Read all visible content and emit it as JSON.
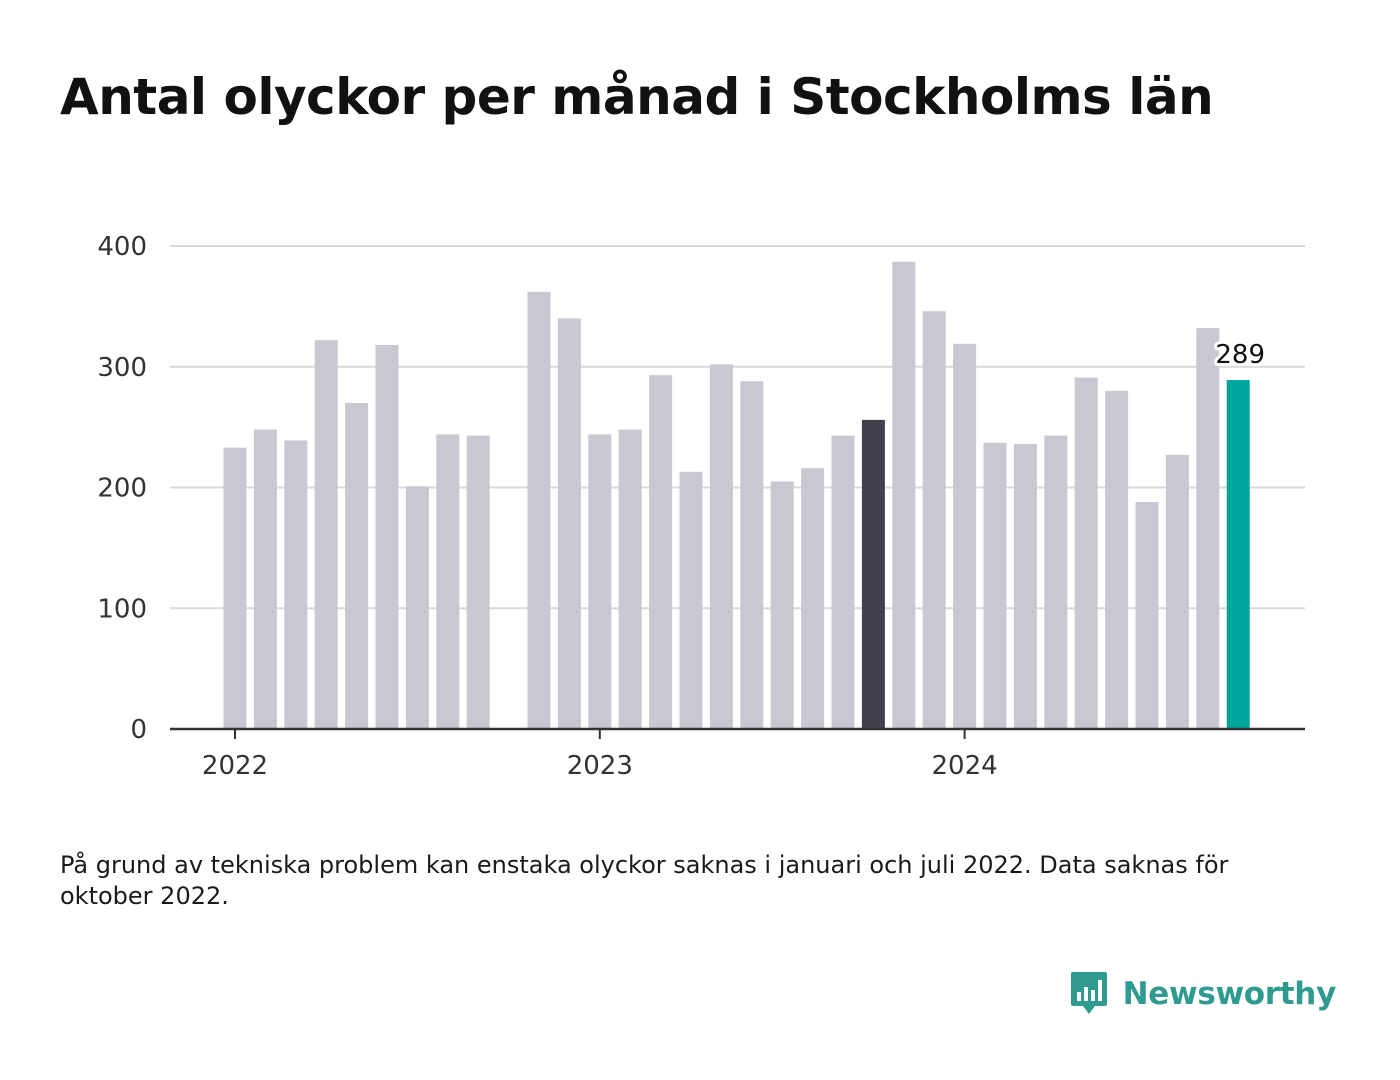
{
  "title": "Antal olyckor per månad i Stockholms län",
  "footnote": "På grund av tekniska problem kan enstaka olyckor saknas i januari och juli 2022. Data saknas för oktober 2022.",
  "brand": {
    "name": "Newsworthy",
    "icon": "bar-chart-speech-bubble-icon",
    "color": "#2f9a8f"
  },
  "colors": {
    "default_bar": "#c8c7d2",
    "same_month_last_year": "#42404c",
    "latest_month": "#00a59c",
    "grid": "#d9d9d9",
    "axis": "#333333"
  },
  "chart_data": {
    "type": "bar",
    "ylim": [
      0,
      400
    ],
    "yticks": [
      0,
      100,
      200,
      300,
      400
    ],
    "grid": true,
    "x_tick_labels": [
      "2022",
      "2023",
      "2024"
    ],
    "xlabel": "",
    "ylabel": "",
    "categories": [
      "2022-01",
      "2022-02",
      "2022-03",
      "2022-04",
      "2022-05",
      "2022-06",
      "2022-07",
      "2022-08",
      "2022-09",
      "2022-10",
      "2022-11",
      "2022-12",
      "2023-01",
      "2023-02",
      "2023-03",
      "2023-04",
      "2023-05",
      "2023-06",
      "2023-07",
      "2023-08",
      "2023-09",
      "2023-10",
      "2023-11",
      "2023-12",
      "2024-01",
      "2024-02",
      "2024-03",
      "2024-04",
      "2024-05",
      "2024-06",
      "2024-07",
      "2024-08",
      "2024-09",
      "2024-10"
    ],
    "values": [
      233,
      248,
      239,
      322,
      270,
      318,
      201,
      244,
      243,
      null,
      362,
      340,
      244,
      248,
      293,
      213,
      302,
      288,
      205,
      216,
      243,
      256,
      387,
      346,
      319,
      237,
      236,
      243,
      291,
      280,
      188,
      227,
      332,
      289
    ],
    "highlight_last_year": "2023-10",
    "highlight_latest": "2024-10",
    "data_labels": [
      {
        "category": "2024-10",
        "value": 289,
        "text": "289"
      }
    ]
  }
}
